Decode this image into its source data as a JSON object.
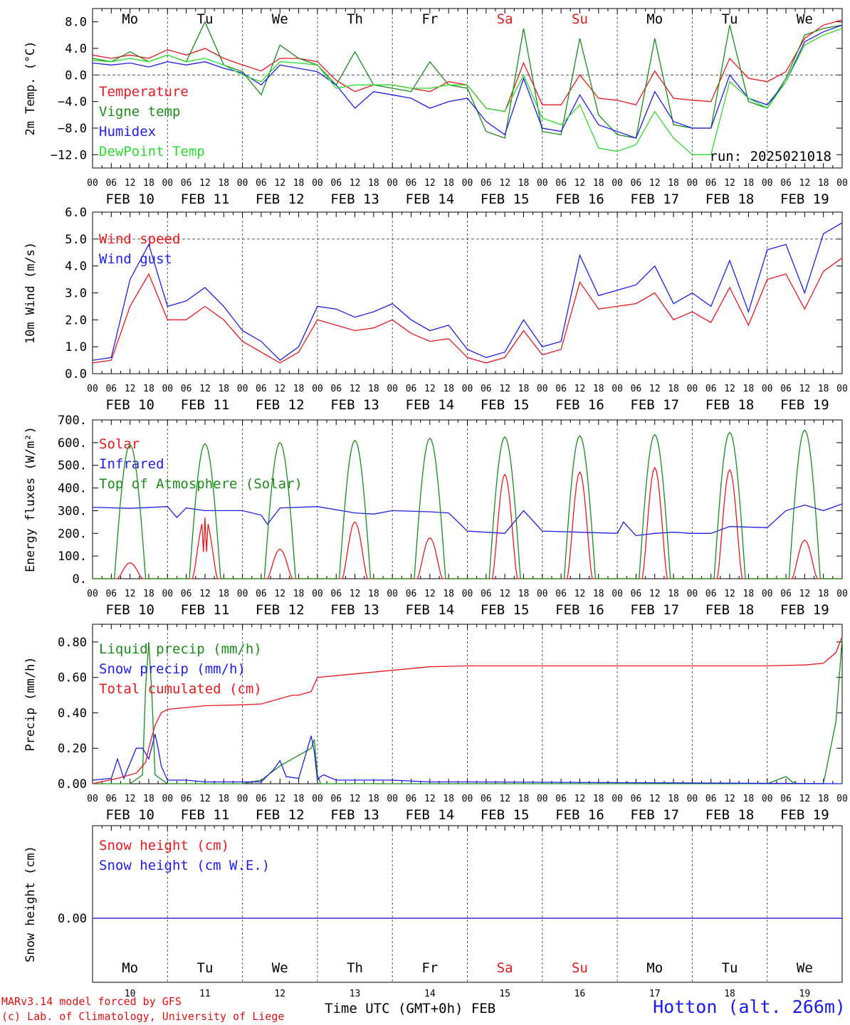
{
  "weekdays": [
    "Mo",
    "Tu",
    "We",
    "Th",
    "Fr",
    "Sa",
    "Su",
    "Mo",
    "Tu",
    "We"
  ],
  "weekend_flags": [
    false,
    false,
    false,
    false,
    false,
    true,
    true,
    false,
    false,
    false
  ],
  "date_labels": [
    "FEB 10",
    "FEB 11",
    "FEB 12",
    "FEB 13",
    "FEB 14",
    "FEB 15",
    "FEB 16",
    "FEB 17",
    "FEB 18",
    "FEB 19"
  ],
  "day_numbers": [
    "10",
    "11",
    "12",
    "13",
    "14",
    "15",
    "16",
    "17",
    "18",
    "19"
  ],
  "hour_ticks": [
    "00",
    "06",
    "12",
    "18"
  ],
  "final_tick": "00",
  "run_label": "run: 2025021018",
  "footer": {
    "model": "MARv3.14 model forced by GFS",
    "lab": "(c) Lab. of Climatology, University of Liege",
    "time_label": "Time UTC (GMT+0h) FEB",
    "station": "Hotton (alt. 266m)"
  },
  "colors": {
    "red": "#e8181f",
    "green": "#1a8c1a",
    "blue": "#1e1ee6",
    "lightgreen": "#2cdc2c",
    "grid": "#555555"
  },
  "chart_data": [
    {
      "type": "line",
      "ylabel": "2m Temp. (°C)",
      "ylim": [
        -14,
        10
      ],
      "yticks": [
        8.0,
        4.0,
        0.0,
        -4.0,
        -8.0,
        -12.0
      ],
      "ytick_labels": [
        "8.0",
        "4.0",
        "0.0",
        "−4.0",
        "−8.0",
        "−12.0"
      ],
      "dashed_ref": [
        0.0
      ],
      "x_unit": "hours since FEB 10 00 UTC",
      "series": [
        {
          "name": "Temperature",
          "color": "red",
          "x": [
            0,
            6,
            12,
            18,
            24,
            30,
            36,
            42,
            48,
            54,
            60,
            66,
            72,
            78,
            84,
            90,
            96,
            102,
            108,
            114,
            120,
            126,
            132,
            138,
            144,
            150,
            156,
            162,
            168,
            174,
            180,
            186,
            192,
            198,
            204,
            210,
            216,
            222,
            228,
            234,
            240
          ],
          "y": [
            3.0,
            2.5,
            3.0,
            2.5,
            3.8,
            3.0,
            4.0,
            2.5,
            1.5,
            0.6,
            2.5,
            2.5,
            2.0,
            -0.8,
            -2.5,
            -1.5,
            -1.5,
            -2.0,
            -2.5,
            -1.0,
            -1.5,
            -5.0,
            -5.5,
            1.8,
            -4.5,
            -4.5,
            0.0,
            -3.5,
            -3.8,
            -4.5,
            0.6,
            -3.5,
            -3.8,
            -4.0,
            2.5,
            -0.5,
            -1.0,
            0.5,
            5.5,
            7.5,
            8.3
          ]
        },
        {
          "name": "Vigne temp",
          "color": "green",
          "x": [
            0,
            6,
            12,
            18,
            24,
            30,
            36,
            42,
            48,
            54,
            60,
            66,
            72,
            78,
            84,
            90,
            96,
            102,
            108,
            114,
            120,
            126,
            132,
            138,
            144,
            150,
            156,
            162,
            168,
            174,
            180,
            186,
            192,
            198,
            204,
            210,
            216,
            222,
            228,
            234,
            240
          ],
          "y": [
            2.5,
            2.0,
            3.5,
            2.0,
            3.0,
            2.0,
            8.0,
            1.5,
            0.5,
            -3.0,
            4.5,
            2.5,
            1.5,
            -1.5,
            3.5,
            -1.5,
            -2.0,
            -2.5,
            2.0,
            -1.5,
            -2.0,
            -8.5,
            -9.5,
            7.0,
            -8.5,
            -9.0,
            5.5,
            -6.0,
            -9.0,
            -9.5,
            5.5,
            -7.5,
            -8.0,
            -8.0,
            7.5,
            -4.0,
            -5.0,
            -0.5,
            6.0,
            7.0,
            7.5
          ]
        },
        {
          "name": "Humidex",
          "color": "blue",
          "x": [
            0,
            6,
            12,
            18,
            24,
            30,
            36,
            42,
            48,
            54,
            60,
            66,
            72,
            78,
            84,
            90,
            96,
            102,
            108,
            114,
            120,
            126,
            132,
            138,
            144,
            150,
            156,
            162,
            168,
            174,
            180,
            186,
            192,
            198,
            204,
            210,
            216,
            222,
            228,
            234,
            240
          ],
          "y": [
            1.8,
            1.5,
            1.8,
            1.2,
            2.0,
            1.5,
            2.0,
            1.0,
            0.3,
            -1.5,
            1.5,
            1.0,
            0.5,
            -1.5,
            -5.0,
            -2.5,
            -3.0,
            -3.5,
            -5.0,
            -4.0,
            -3.5,
            -7.0,
            -9.0,
            -0.5,
            -8.0,
            -8.5,
            -3.0,
            -7.5,
            -8.5,
            -9.5,
            -2.5,
            -7.0,
            -8.0,
            -8.0,
            0.0,
            -3.5,
            -4.5,
            -1.0,
            5.0,
            6.5,
            7.5
          ]
        },
        {
          "name": "DewPoint Temp",
          "color": "lightgreen",
          "x": [
            0,
            6,
            12,
            18,
            24,
            30,
            36,
            42,
            48,
            54,
            60,
            66,
            72,
            78,
            84,
            90,
            96,
            102,
            108,
            114,
            120,
            126,
            132,
            138,
            144,
            150,
            156,
            162,
            168,
            174,
            180,
            186,
            192,
            198,
            204,
            210,
            216,
            222,
            228,
            234,
            240
          ],
          "y": [
            2.2,
            2.0,
            2.5,
            2.0,
            3.0,
            2.0,
            2.5,
            1.5,
            0.0,
            -1.0,
            2.0,
            1.8,
            1.5,
            -2.0,
            -1.5,
            -1.5,
            -1.5,
            -2.0,
            -2.0,
            -1.5,
            -1.5,
            -5.0,
            -5.5,
            0.0,
            -6.5,
            -7.5,
            -4.5,
            -11.0,
            -11.5,
            -10.5,
            -5.5,
            -9.5,
            -12.0,
            -12.0,
            -1.0,
            -3.5,
            -5.0,
            -1.0,
            4.5,
            6.0,
            7.0
          ]
        }
      ]
    },
    {
      "type": "line",
      "ylabel": "10m Wind (m/s)",
      "ylim": [
        0,
        6.0
      ],
      "yticks": [
        6.0,
        5.0,
        4.0,
        3.0,
        2.0,
        1.0,
        0.0
      ],
      "ytick_labels": [
        "6.0",
        "5.0",
        "4.0",
        "3.0",
        "2.0",
        "1.0",
        "0.0"
      ],
      "dashed_ref": [
        5.0
      ],
      "x_unit": "hours since FEB 10 00 UTC",
      "series": [
        {
          "name": "Wind speed",
          "color": "red",
          "x": [
            0,
            6,
            12,
            18,
            24,
            30,
            36,
            42,
            48,
            54,
            60,
            66,
            72,
            78,
            84,
            90,
            96,
            102,
            108,
            114,
            120,
            126,
            132,
            138,
            144,
            150,
            156,
            162,
            168,
            174,
            180,
            186,
            192,
            198,
            204,
            210,
            216,
            222,
            228,
            234,
            240
          ],
          "y": [
            0.4,
            0.5,
            2.5,
            3.7,
            2.0,
            2.0,
            2.5,
            2.0,
            1.2,
            0.8,
            0.4,
            0.8,
            2.0,
            1.8,
            1.6,
            1.7,
            2.0,
            1.5,
            1.2,
            1.3,
            0.6,
            0.4,
            0.6,
            1.6,
            0.7,
            0.9,
            3.4,
            2.4,
            2.5,
            2.6,
            3.0,
            2.0,
            2.3,
            1.9,
            3.2,
            1.8,
            3.5,
            3.7,
            2.4,
            3.8,
            4.3
          ]
        },
        {
          "name": "Wind gust",
          "color": "blue",
          "x": [
            0,
            6,
            12,
            18,
            24,
            30,
            36,
            42,
            48,
            54,
            60,
            66,
            72,
            78,
            84,
            90,
            96,
            102,
            108,
            114,
            120,
            126,
            132,
            138,
            144,
            150,
            156,
            162,
            168,
            174,
            180,
            186,
            192,
            198,
            204,
            210,
            216,
            222,
            228,
            234,
            240
          ],
          "y": [
            0.5,
            0.6,
            3.5,
            4.8,
            2.5,
            2.7,
            3.2,
            2.5,
            1.6,
            1.2,
            0.5,
            1.0,
            2.5,
            2.4,
            2.1,
            2.3,
            2.6,
            2.0,
            1.6,
            1.8,
            0.9,
            0.6,
            0.8,
            2.0,
            1.0,
            1.2,
            4.4,
            2.9,
            3.1,
            3.3,
            4.0,
            2.6,
            3.0,
            2.5,
            4.2,
            2.3,
            4.6,
            4.8,
            3.0,
            5.2,
            5.6
          ]
        }
      ]
    },
    {
      "type": "line",
      "ylabel": "Energy fluxes (W/m²)",
      "ylim": [
        0,
        700
      ],
      "yticks": [
        700,
        600,
        500,
        400,
        300,
        200,
        100,
        0
      ],
      "ytick_labels": [
        "700.",
        "600.",
        "500.",
        "400.",
        "300.",
        "200.",
        "100.",
        "0."
      ],
      "x_unit": "hours since FEB 10 00 UTC",
      "series": [
        {
          "name": "Solar",
          "color": "red",
          "day_peaks": [
            70,
            270,
            130,
            250,
            180,
            460,
            470,
            490,
            480,
            170
          ]
        },
        {
          "name": "Infrared",
          "color": "blue",
          "x": [
            0,
            12,
            24,
            27,
            30,
            36,
            42,
            48,
            54,
            56,
            60,
            72,
            84,
            90,
            96,
            108,
            114,
            120,
            126,
            132,
            138,
            144,
            156,
            168,
            170,
            174,
            180,
            186,
            192,
            198,
            204,
            216,
            222,
            228,
            234,
            240
          ],
          "y": [
            315,
            310,
            318,
            270,
            312,
            300,
            300,
            300,
            280,
            240,
            312,
            318,
            290,
            285,
            300,
            295,
            290,
            210,
            205,
            200,
            300,
            210,
            205,
            200,
            250,
            190,
            200,
            205,
            200,
            200,
            230,
            225,
            300,
            325,
            300,
            330
          ]
        },
        {
          "name": "Top of Atmosphere (Solar)",
          "color": "green",
          "day_peaks": [
            590,
            595,
            600,
            610,
            620,
            625,
            630,
            635,
            645,
            655
          ]
        }
      ]
    },
    {
      "type": "line",
      "ylabel": "Precip (mm/h)",
      "ylim": [
        0,
        0.9
      ],
      "yticks": [
        0.8,
        0.6,
        0.4,
        0.2,
        0.0
      ],
      "ytick_labels": [
        "0.80",
        "0.60",
        "0.40",
        "0.20",
        "0.00"
      ],
      "x_unit": "hours since FEB 10 00 UTC",
      "series": [
        {
          "name": "Liquid precip (mm/h)",
          "color": "green",
          "x": [
            0,
            12,
            16,
            17,
            18,
            19,
            20,
            24,
            36,
            48,
            54,
            60,
            70,
            71,
            72,
            73,
            74,
            84,
            96,
            120,
            216,
            222,
            224,
            226,
            234,
            238,
            240
          ],
          "y": [
            0,
            0,
            0.05,
            0.55,
            0.8,
            0.5,
            0.05,
            0,
            0,
            0,
            0.02,
            0.1,
            0.2,
            0.25,
            0.05,
            0,
            0,
            0,
            0,
            0,
            0,
            0.04,
            0.01,
            0,
            0,
            0.35,
            0.82
          ]
        },
        {
          "name": "Snow precip (mm/h)",
          "color": "blue",
          "x": [
            0,
            6,
            8,
            10,
            14,
            16,
            18,
            20,
            21,
            22,
            24,
            30,
            36,
            48,
            54,
            58,
            60,
            62,
            66,
            70,
            71,
            72,
            73,
            74,
            78,
            84,
            96,
            108,
            120,
            240
          ],
          "y": [
            0.02,
            0.03,
            0.14,
            0.03,
            0.2,
            0.2,
            0.14,
            0.28,
            0.2,
            0.1,
            0.02,
            0.02,
            0.01,
            0.01,
            0.01,
            0.08,
            0.13,
            0.04,
            0.03,
            0.27,
            0.18,
            0.02,
            0.04,
            0.05,
            0.02,
            0.02,
            0.02,
            0.01,
            0.01,
            0
          ]
        },
        {
          "name": "Total cumulated (cm)",
          "color": "red",
          "x": [
            0,
            8,
            14,
            17,
            18,
            20,
            22,
            24,
            30,
            36,
            48,
            54,
            60,
            64,
            66,
            70,
            72,
            78,
            84,
            96,
            108,
            120,
            144,
            168,
            192,
            216,
            228,
            234,
            238,
            240
          ],
          "y": [
            0.0,
            0.03,
            0.06,
            0.12,
            0.2,
            0.33,
            0.4,
            0.42,
            0.43,
            0.44,
            0.445,
            0.45,
            0.48,
            0.5,
            0.5,
            0.52,
            0.6,
            0.61,
            0.62,
            0.64,
            0.66,
            0.665,
            0.665,
            0.665,
            0.665,
            0.665,
            0.67,
            0.68,
            0.74,
            0.83
          ]
        }
      ]
    },
    {
      "type": "line",
      "ylabel": "Snow height (cm)",
      "yticks": [
        0.0
      ],
      "ytick_labels": [
        "0.00"
      ],
      "x_unit": "hours since FEB 10 00 UTC",
      "series": [
        {
          "name": "Snow height (cm)",
          "color": "red",
          "x": [
            0,
            240
          ],
          "y": [
            0,
            0
          ]
        },
        {
          "name": "Snow height (cm W.E.)",
          "color": "blue",
          "x": [
            0,
            240
          ],
          "y": [
            0,
            0
          ]
        }
      ]
    }
  ]
}
